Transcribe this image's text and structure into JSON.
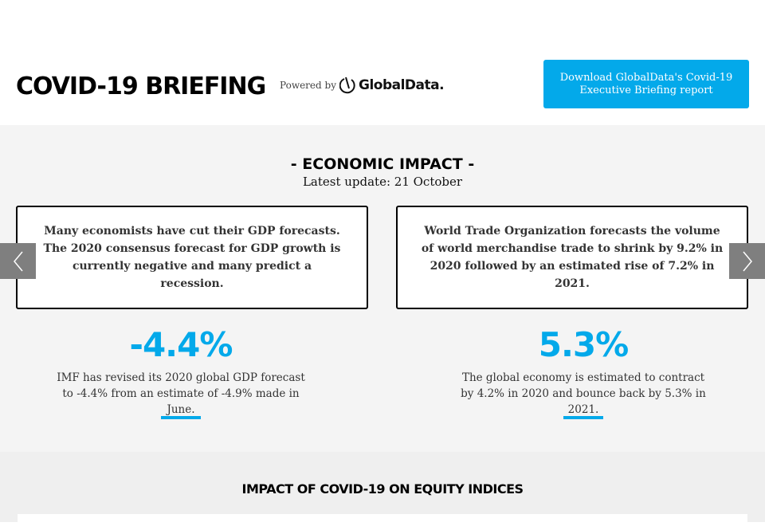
{
  "header": {
    "title": "COVID-19 BRIEFING",
    "powered_by": "Powered by",
    "logo_text": "GlobalData.",
    "download_button": "Download GlobalData's Covid-19 Executive Briefing report",
    "accent_color": "#03a9ea"
  },
  "economic_impact": {
    "title": "- ECONOMIC IMPACT -",
    "latest_update": "Latest update: 21 October",
    "cards": [
      {
        "text": "Many economists have cut their GDP forecasts. The 2020 consensus forecast for GDP growth is currently negative and many predict a recession."
      },
      {
        "text": "World Trade Organization forecasts the volume of world merchandise trade to shrink by 9.2% in 2020 followed by an estimated rise of 7.2% in 2021."
      }
    ],
    "stats": [
      {
        "value": "-4.4%",
        "description": "IMF has revised its 2020 global GDP forecast to -4.4% from an estimate of -4.9% made in June."
      },
      {
        "value": "5.3%",
        "description": "The global economy is estimated to contract by 4.2% in 2020 and bounce back by 5.3% in 2021."
      }
    ],
    "prev_icon": "chevron-left-icon",
    "next_icon": "chevron-right-icon"
  },
  "equity": {
    "title": "IMPACT OF COVID-19 ON EQUITY INDICES"
  }
}
